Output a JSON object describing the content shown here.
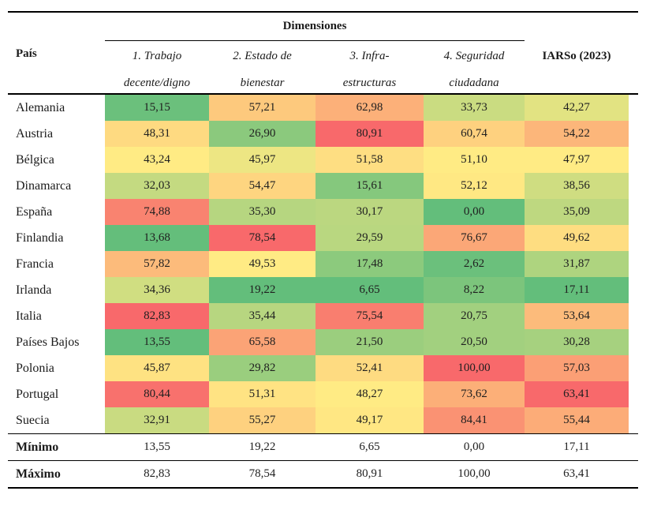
{
  "table": {
    "dimensions_header": "Dimensiones",
    "country_col_header": "País",
    "iarso_header": "IARSo (2023)",
    "dimension_columns": [
      {
        "line1": "1. Trabajo",
        "line2": "decente/digno"
      },
      {
        "line1": "2. Estado de",
        "line2": "bienestar"
      },
      {
        "line1": "3. Infra-",
        "line2": "estructuras"
      },
      {
        "line1": "4. Seguridad",
        "line2": "ciudadana"
      }
    ],
    "rows": [
      {
        "country": "Alemania",
        "values": [
          "15,15",
          "57,21",
          "62,98",
          "33,73",
          "42,27"
        ],
        "colors": [
          "#6BC07C",
          "#FDC97D",
          "#FCB079",
          "#CADC81",
          "#E2E382"
        ]
      },
      {
        "country": "Austria",
        "values": [
          "48,31",
          "26,90",
          "80,91",
          "60,74",
          "54,22"
        ],
        "colors": [
          "#FEDA81",
          "#8BC97D",
          "#F8696B",
          "#FED17F",
          "#FCB67A"
        ]
      },
      {
        "country": "Bélgica",
        "values": [
          "43,24",
          "45,97",
          "51,58",
          "51,10",
          "47,97"
        ],
        "colors": [
          "#FFEB84",
          "#EDE683",
          "#FEDE82",
          "#FFEB84",
          "#FFEB84"
        ]
      },
      {
        "country": "Dinamarca",
        "values": [
          "32,03",
          "54,47",
          "15,61",
          "52,12",
          "38,56"
        ],
        "colors": [
          "#C4DA81",
          "#FED580",
          "#85C87D",
          "#FFE883",
          "#CFDD81"
        ]
      },
      {
        "country": "España",
        "values": [
          "74,88",
          "35,30",
          "30,17",
          "0,00",
          "35,09"
        ],
        "colors": [
          "#F98370",
          "#B6D680",
          "#BBD780",
          "#63BE7B",
          "#BED880"
        ]
      },
      {
        "country": "Finlandia",
        "values": [
          "13,68",
          "78,54",
          "29,59",
          "76,67",
          "49,62"
        ],
        "colors": [
          "#64BE7B",
          "#F8696B",
          "#B9D780",
          "#FBA777",
          "#FEDD81"
        ]
      },
      {
        "country": "Francia",
        "values": [
          "57,82",
          "49,53",
          "17,48",
          "2,62",
          "31,87"
        ],
        "colors": [
          "#FCBB7B",
          "#FFEB84",
          "#8CCA7D",
          "#6BC07C",
          "#AED47F"
        ]
      },
      {
        "country": "Irlanda",
        "values": [
          "34,36",
          "19,22",
          "6,65",
          "8,22",
          "17,11"
        ],
        "colors": [
          "#D0DE81",
          "#63BE7B",
          "#63BE7B",
          "#7CC57C",
          "#63BE7B"
        ]
      },
      {
        "country": "Italia",
        "values": [
          "82,83",
          "35,44",
          "75,54",
          "20,75",
          "53,64"
        ],
        "colors": [
          "#F8696B",
          "#B7D680",
          "#F97E6F",
          "#A2D07F",
          "#FCBB7B"
        ]
      },
      {
        "country": "Países Bajos",
        "values": [
          "13,55",
          "65,58",
          "21,50",
          "20,50",
          "30,28"
        ],
        "colors": [
          "#63BE7B",
          "#FBA376",
          "#9BCE7E",
          "#A2D07F",
          "#A6D17F"
        ]
      },
      {
        "country": "Polonia",
        "values": [
          "45,87",
          "29,82",
          "52,41",
          "100,00",
          "57,03"
        ],
        "colors": [
          "#FEE282",
          "#9ACE7E",
          "#FEDB81",
          "#F8696B",
          "#FB9F75"
        ]
      },
      {
        "country": "Portugal",
        "values": [
          "80,44",
          "51,31",
          "48,27",
          "73,62",
          "63,41"
        ],
        "colors": [
          "#F8716D",
          "#FFE383",
          "#FFEB84",
          "#FCAF78",
          "#F8696B"
        ]
      },
      {
        "country": "Suecia",
        "values": [
          "32,91",
          "55,27",
          "49,17",
          "84,41",
          "55,44"
        ],
        "colors": [
          "#C9DB81",
          "#FED17F",
          "#FFE783",
          "#FA9273",
          "#FCAC78"
        ]
      }
    ],
    "summary_rows": [
      {
        "label": "Mínimo",
        "values": [
          "13,55",
          "19,22",
          "6,65",
          "0,00",
          "17,11"
        ]
      },
      {
        "label": "Máximo",
        "values": [
          "82,83",
          "78,54",
          "80,91",
          "100,00",
          "63,41"
        ]
      }
    ]
  },
  "chart_data": {
    "type": "heatmap",
    "title": "Dimensiones",
    "row_label_header": "País",
    "columns": [
      "1. Trabajo decente/digno",
      "2. Estado de bienestar",
      "3. Infraestructuras",
      "4. Seguridad ciudadana",
      "IARSo (2023)"
    ],
    "rows": [
      "Alemania",
      "Austria",
      "Bélgica",
      "Dinamarca",
      "España",
      "Finlandia",
      "Francia",
      "Irlanda",
      "Italia",
      "Países Bajos",
      "Polonia",
      "Portugal",
      "Suecia"
    ],
    "values": [
      [
        15.15,
        57.21,
        62.98,
        33.73,
        42.27
      ],
      [
        48.31,
        26.9,
        80.91,
        60.74,
        54.22
      ],
      [
        43.24,
        45.97,
        51.58,
        51.1,
        47.97
      ],
      [
        32.03,
        54.47,
        15.61,
        52.12,
        38.56
      ],
      [
        74.88,
        35.3,
        30.17,
        0.0,
        35.09
      ],
      [
        13.68,
        78.54,
        29.59,
        76.67,
        49.62
      ],
      [
        57.82,
        49.53,
        17.48,
        2.62,
        31.87
      ],
      [
        34.36,
        19.22,
        6.65,
        8.22,
        17.11
      ],
      [
        82.83,
        35.44,
        75.54,
        20.75,
        53.64
      ],
      [
        13.55,
        65.58,
        21.5,
        20.5,
        30.28
      ],
      [
        45.87,
        29.82,
        52.41,
        100.0,
        57.03
      ],
      [
        80.44,
        51.31,
        48.27,
        73.62,
        63.41
      ],
      [
        32.91,
        55.27,
        49.17,
        84.41,
        55.44
      ]
    ],
    "minimo": [
      13.55,
      19.22,
      6.65,
      0.0,
      17.11
    ],
    "maximo": [
      82.83,
      78.54,
      80.91,
      100.0,
      63.41
    ],
    "color_scale": {
      "low": "#63BE7B",
      "mid": "#FFEB84",
      "high": "#F8696B",
      "normalization": "per-column min/median/max"
    },
    "decimal_separator": ","
  }
}
